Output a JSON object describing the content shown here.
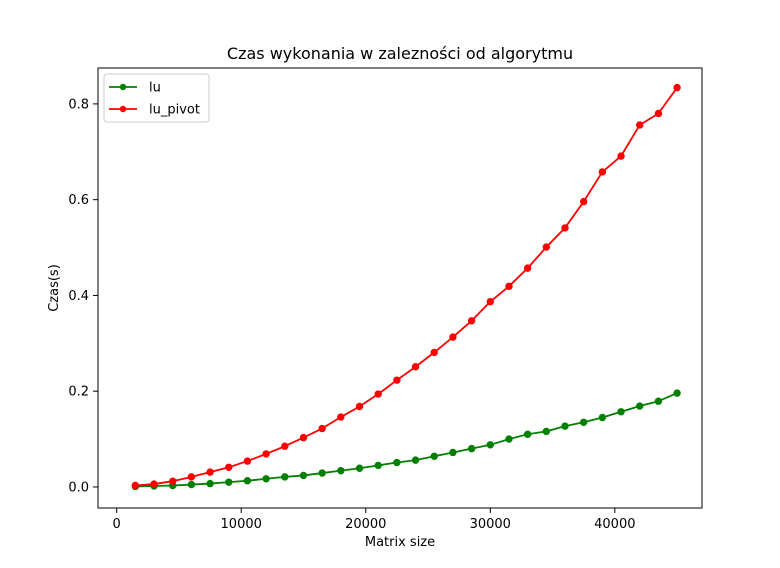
{
  "chart_data": {
    "type": "line",
    "title": "Czas wykonania w zalezności od algorytmu",
    "xlabel": "Matrix size",
    "ylabel": "Czas(s)",
    "xlim": [
      -1500,
      47000
    ],
    "ylim": [
      -0.044,
      0.875
    ],
    "xticks": [
      0,
      10000,
      20000,
      30000,
      40000
    ],
    "xtick_labels": [
      "0",
      "10000",
      "20000",
      "30000",
      "40000"
    ],
    "yticks": [
      0.0,
      0.2,
      0.4,
      0.6,
      0.8
    ],
    "ytick_labels": [
      "0.0",
      "0.2",
      "0.4",
      "0.6",
      "0.8"
    ],
    "grid": false,
    "legend_position": "upper-left",
    "x": [
      1500,
      3000,
      4500,
      6000,
      7500,
      9000,
      10500,
      12000,
      13500,
      15000,
      16500,
      18000,
      19500,
      21000,
      22500,
      24000,
      25500,
      27000,
      28500,
      30000,
      31500,
      33000,
      34500,
      36000,
      37500,
      39000,
      40500,
      42000,
      43500,
      45000
    ],
    "series": [
      {
        "name": "lu",
        "color": "#008000",
        "values": [
          0.001,
          0.002,
          0.003,
          0.005,
          0.007,
          0.01,
          0.013,
          0.017,
          0.021,
          0.024,
          0.029,
          0.034,
          0.039,
          0.045,
          0.051,
          0.056,
          0.064,
          0.072,
          0.08,
          0.088,
          0.1,
          0.11,
          0.116,
          0.127,
          0.135,
          0.145,
          0.157,
          0.169,
          0.179,
          0.196
        ]
      },
      {
        "name": "lu_pivot",
        "color": "#ff0000",
        "values": [
          0.003,
          0.006,
          0.012,
          0.021,
          0.031,
          0.041,
          0.054,
          0.069,
          0.085,
          0.103,
          0.122,
          0.146,
          0.168,
          0.194,
          0.223,
          0.251,
          0.281,
          0.313,
          0.347,
          0.387,
          0.419,
          0.457,
          0.501,
          0.541,
          0.596,
          0.658,
          0.691,
          0.756,
          0.78,
          0.834
        ]
      }
    ]
  }
}
